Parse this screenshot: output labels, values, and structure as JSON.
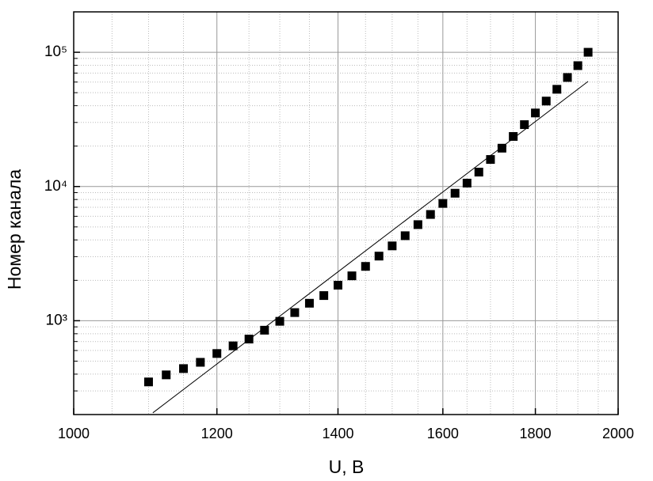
{
  "chart_data": {
    "type": "scatter",
    "xlabel": "U, В",
    "ylabel": "Номер канала",
    "x": [
      1100,
      1125,
      1150,
      1175,
      1200,
      1225,
      1250,
      1275,
      1300,
      1325,
      1350,
      1375,
      1400,
      1425,
      1450,
      1475,
      1500,
      1525,
      1550,
      1575,
      1600,
      1625,
      1650,
      1675,
      1700,
      1725,
      1750,
      1775,
      1800,
      1825,
      1850,
      1875,
      1900,
      1925
    ],
    "values": [
      350,
      395,
      440,
      490,
      570,
      650,
      730,
      850,
      990,
      1150,
      1350,
      1540,
      1840,
      2160,
      2540,
      3030,
      3610,
      4300,
      5200,
      6190,
      7480,
      8910,
      10600,
      12800,
      15900,
      19300,
      23600,
      28900,
      35300,
      43300,
      53000,
      64900,
      79500,
      100000
    ],
    "color": "#000000",
    "fit": {
      "x": [
        1106,
        1925
      ],
      "values": [
        206,
        60700
      ],
      "color": "#000000"
    },
    "xlim": [
      1000,
      2000
    ],
    "ylim": [
      200,
      200000
    ],
    "xscale": "log",
    "yscale": "log",
    "xticks": [
      1000,
      1200,
      1400,
      1600,
      1800,
      2000
    ],
    "yticks": [
      {
        "value": 1000,
        "label": "10³"
      },
      {
        "value": 10000,
        "label": "10⁴"
      },
      {
        "value": 100000,
        "label": "10⁵"
      }
    ],
    "grid": true
  }
}
